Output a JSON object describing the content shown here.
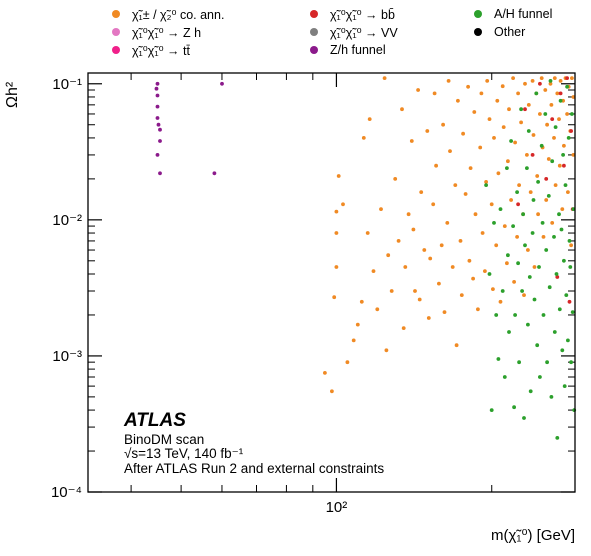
{
  "chart_data": {
    "type": "scatter",
    "title": "",
    "xlabel": "m(χ̃₁⁰) [GeV]",
    "ylabel": "Ωh²",
    "xscale": "log",
    "yscale": "log",
    "xlim": [
      33,
      290
    ],
    "ylim": [
      0.0001,
      0.12
    ],
    "x_tick_labels": [
      "10²"
    ],
    "y_tick_labels": [
      "10⁻¹",
      "10⁻²",
      "10⁻³",
      "10⁻⁴"
    ],
    "legend_placement": "top",
    "annotations": {
      "experiment": "ATLAS",
      "scan": "BinoDM scan",
      "energy": "√s=13 TeV, 140 fb⁻¹",
      "constraints": "After ATLAS Run 2 and external constraints"
    },
    "series": [
      {
        "name": "χ̃₁± / χ̃₂⁰ co. ann.",
        "color": "#f08a24",
        "points": [
          [
            95,
            0.00075
          ],
          [
            98,
            0.00055
          ],
          [
            99,
            0.0027
          ],
          [
            100,
            0.0115
          ],
          [
            100,
            0.008
          ],
          [
            100,
            0.0045
          ],
          [
            101,
            0.021
          ],
          [
            103,
            0.013
          ],
          [
            105,
            0.0009
          ],
          [
            108,
            0.0013
          ],
          [
            110,
            0.0017
          ],
          [
            112,
            0.0025
          ],
          [
            113,
            0.04
          ],
          [
            115,
            0.008
          ],
          [
            116,
            0.055
          ],
          [
            118,
            0.0042
          ],
          [
            120,
            0.0022
          ],
          [
            122,
            0.012
          ],
          [
            124,
            0.11
          ],
          [
            125,
            0.0011
          ],
          [
            126,
            0.0055
          ],
          [
            128,
            0.003
          ],
          [
            130,
            0.02
          ],
          [
            132,
            0.007
          ],
          [
            134,
            0.065
          ],
          [
            135,
            0.0016
          ],
          [
            136,
            0.0045
          ],
          [
            138,
            0.011
          ],
          [
            140,
            0.038
          ],
          [
            141,
            0.0085
          ],
          [
            142,
            0.003
          ],
          [
            144,
            0.09
          ],
          [
            145,
            0.0026
          ],
          [
            146,
            0.016
          ],
          [
            148,
            0.006
          ],
          [
            150,
            0.045
          ],
          [
            151,
            0.0019
          ],
          [
            152,
            0.0052
          ],
          [
            154,
            0.013
          ],
          [
            155,
            0.085
          ],
          [
            156,
            0.025
          ],
          [
            158,
            0.0034
          ],
          [
            160,
            0.0065
          ],
          [
            161,
            0.05
          ],
          [
            162,
            0.0021
          ],
          [
            164,
            0.0095
          ],
          [
            165,
            0.105
          ],
          [
            166,
            0.032
          ],
          [
            168,
            0.0045
          ],
          [
            170,
            0.018
          ],
          [
            171,
            0.0012
          ],
          [
            172,
            0.075
          ],
          [
            174,
            0.007
          ],
          [
            175,
            0.0028
          ],
          [
            176,
            0.043
          ],
          [
            178,
            0.0155
          ],
          [
            180,
            0.095
          ],
          [
            181,
            0.005
          ],
          [
            182,
            0.024
          ],
          [
            184,
            0.0037
          ],
          [
            185,
            0.062
          ],
          [
            186,
            0.011
          ],
          [
            188,
            0.0022
          ],
          [
            190,
            0.034
          ],
          [
            191,
            0.085
          ],
          [
            192,
            0.008
          ],
          [
            194,
            0.0042
          ],
          [
            195,
            0.019
          ],
          [
            196,
            0.105
          ],
          [
            198,
            0.055
          ],
          [
            200,
            0.013
          ],
          [
            201,
            0.0031
          ],
          [
            202,
            0.04
          ],
          [
            204,
            0.0065
          ],
          [
            205,
            0.075
          ],
          [
            206,
            0.022
          ],
          [
            208,
            0.0025
          ],
          [
            210,
            0.096
          ],
          [
            211,
            0.048
          ],
          [
            212,
            0.009
          ],
          [
            214,
            0.0048
          ],
          [
            215,
            0.027
          ],
          [
            216,
            0.065
          ],
          [
            218,
            0.014
          ],
          [
            220,
            0.11
          ],
          [
            221,
            0.0035
          ],
          [
            222,
            0.037
          ],
          [
            224,
            0.0075
          ],
          [
            225,
            0.085
          ],
          [
            226,
            0.018
          ],
          [
            228,
            0.052
          ],
          [
            230,
            0.011
          ],
          [
            231,
            0.0028
          ],
          [
            232,
            0.1
          ],
          [
            234,
            0.03
          ],
          [
            235,
            0.006
          ],
          [
            236,
            0.07
          ],
          [
            238,
            0.016
          ],
          [
            240,
            0.105
          ],
          [
            241,
            0.042
          ],
          [
            242,
            0.0045
          ],
          [
            244,
            0.085
          ],
          [
            245,
            0.021
          ],
          [
            246,
            0.011
          ],
          [
            248,
            0.06
          ],
          [
            250,
            0.11
          ],
          [
            251,
            0.034
          ],
          [
            252,
            0.0075
          ],
          [
            254,
            0.09
          ],
          [
            255,
            0.014
          ],
          [
            256,
            0.05
          ],
          [
            258,
            0.028
          ],
          [
            260,
            0.1
          ],
          [
            261,
            0.07
          ],
          [
            262,
            0.0095
          ],
          [
            264,
            0.04
          ],
          [
            265,
            0.11
          ],
          [
            266,
            0.018
          ],
          [
            268,
            0.085
          ],
          [
            270,
            0.055
          ],
          [
            271,
            0.025
          ],
          [
            272,
            0.105
          ],
          [
            274,
            0.012
          ],
          [
            275,
            0.075
          ],
          [
            276,
            0.035
          ],
          [
            278,
            0.11
          ],
          [
            280,
            0.06
          ],
          [
            281,
            0.016
          ],
          [
            282,
            0.095
          ],
          [
            284,
            0.045
          ],
          [
            285,
            0.0065
          ],
          [
            286,
            0.11
          ],
          [
            288,
            0.08
          ],
          [
            288,
            0.03
          ]
        ]
      },
      {
        "name": "χ̃₁⁰χ̃₁⁰ → Z h",
        "color": "#e377c2",
        "points": []
      },
      {
        "name": "χ̃₁⁰χ̃₁⁰ → tt̄",
        "color": "#f0208a",
        "points": []
      },
      {
        "name": "χ̃₁⁰χ̃₁⁰ → bb̄",
        "color": "#d62728",
        "points": [
          [
            225,
            0.013
          ],
          [
            232,
            0.065
          ],
          [
            240,
            0.03
          ],
          [
            248,
            0.1
          ],
          [
            255,
            0.02
          ],
          [
            262,
            0.055
          ],
          [
            268,
            0.0038
          ],
          [
            272,
            0.085
          ],
          [
            276,
            0.025
          ],
          [
            280,
            0.11
          ],
          [
            283,
            0.0025
          ],
          [
            285,
            0.045
          ],
          [
            287,
            0.012
          ]
        ]
      },
      {
        "name": "χ̃₁⁰χ̃₁⁰ → VV",
        "color": "#7f7f7f",
        "points": []
      },
      {
        "name": "Z/h funnel",
        "color": "#8b1a8b",
        "points": [
          [
            45,
            0.1
          ],
          [
            45,
            0.082
          ],
          [
            45,
            0.068
          ],
          [
            45,
            0.056
          ],
          [
            45.5,
            0.046
          ],
          [
            45.5,
            0.038
          ],
          [
            45,
            0.03
          ],
          [
            45.5,
            0.022
          ],
          [
            44.8,
            0.092
          ],
          [
            45.2,
            0.05
          ],
          [
            58,
            0.022
          ],
          [
            60,
            0.1
          ]
        ]
      },
      {
        "name": "A/H funnel",
        "color": "#2ca02c",
        "points": [
          [
            195,
            0.018
          ],
          [
            198,
            0.004
          ],
          [
            200,
            0.0004
          ],
          [
            202,
            0.0095
          ],
          [
            204,
            0.002
          ],
          [
            206,
            0.00095
          ],
          [
            208,
            0.012
          ],
          [
            210,
            0.003
          ],
          [
            212,
            0.0007
          ],
          [
            214,
            0.024
          ],
          [
            215,
            0.0055
          ],
          [
            216,
            0.0015
          ],
          [
            218,
            0.038
          ],
          [
            220,
            0.009
          ],
          [
            221,
            0.00042
          ],
          [
            222,
            0.002
          ],
          [
            224,
            0.016
          ],
          [
            225,
            0.0048
          ],
          [
            226,
            0.0009
          ],
          [
            228,
            0.065
          ],
          [
            229,
            0.003
          ],
          [
            230,
            0.011
          ],
          [
            231,
            0.00035
          ],
          [
            232,
            0.0065
          ],
          [
            234,
            0.024
          ],
          [
            235,
            0.0017
          ],
          [
            236,
            0.045
          ],
          [
            237,
            0.0038
          ],
          [
            238,
            0.00055
          ],
          [
            240,
            0.008
          ],
          [
            241,
            0.014
          ],
          [
            242,
            0.0026
          ],
          [
            244,
            0.085
          ],
          [
            245,
            0.0012
          ],
          [
            246,
            0.019
          ],
          [
            247,
            0.0045
          ],
          [
            248,
            0.0007
          ],
          [
            250,
            0.035
          ],
          [
            251,
            0.0095
          ],
          [
            252,
            0.002
          ],
          [
            254,
            0.06
          ],
          [
            255,
            0.006
          ],
          [
            256,
            0.0009
          ],
          [
            258,
            0.015
          ],
          [
            259,
            0.0032
          ],
          [
            260,
            0.105
          ],
          [
            261,
            0.0005
          ],
          [
            262,
            0.027
          ],
          [
            264,
            0.0075
          ],
          [
            265,
            0.0015
          ],
          [
            266,
            0.048
          ],
          [
            267,
            0.004
          ],
          [
            268,
            0.00025
          ],
          [
            270,
            0.011
          ],
          [
            271,
            0.0022
          ],
          [
            272,
            0.075
          ],
          [
            273,
            0.0085
          ],
          [
            274,
            0.0011
          ],
          [
            275,
            0.03
          ],
          [
            276,
            0.005
          ],
          [
            277,
            0.0006
          ],
          [
            278,
            0.018
          ],
          [
            279,
            0.0028
          ],
          [
            280,
            0.095
          ],
          [
            281,
            0.0013
          ],
          [
            282,
            0.04
          ],
          [
            283,
            0.007
          ],
          [
            284,
            0.0045
          ],
          [
            285,
            0.0009
          ],
          [
            286,
            0.06
          ],
          [
            287,
            0.0021
          ],
          [
            288,
            0.012
          ],
          [
            289,
            0.0004
          ]
        ]
      },
      {
        "name": "Other",
        "color": "#000000",
        "points": []
      }
    ],
    "legend_layout": [
      {
        "series": 0,
        "col": 0,
        "row": 0
      },
      {
        "series": 1,
        "col": 0,
        "row": 1
      },
      {
        "series": 2,
        "col": 0,
        "row": 2
      },
      {
        "series": 3,
        "col": 1,
        "row": 0
      },
      {
        "series": 4,
        "col": 1,
        "row": 1
      },
      {
        "series": 5,
        "col": 1,
        "row": 2
      },
      {
        "series": 6,
        "col": 2,
        "row": 0
      },
      {
        "series": 7,
        "col": 2,
        "row": 1
      }
    ]
  }
}
